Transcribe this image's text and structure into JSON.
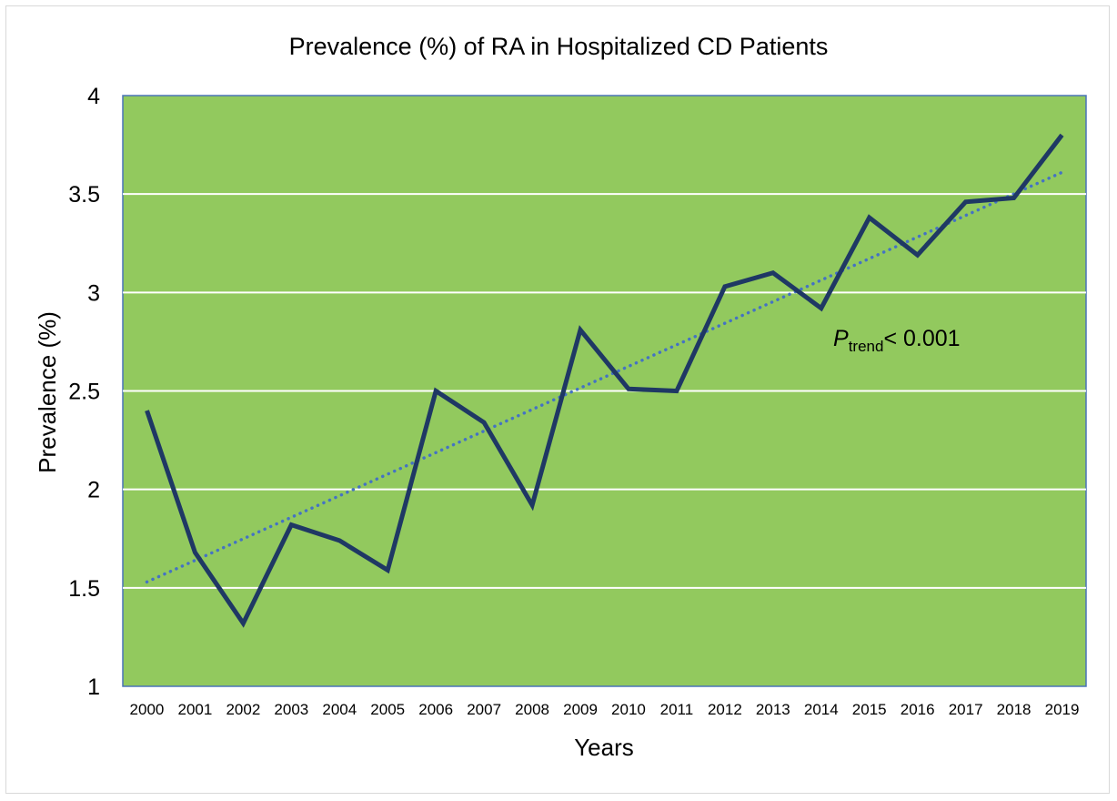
{
  "chart_data": {
    "type": "line",
    "title": "Prevalence (%) of RA in Hospitalized CD Patients",
    "xlabel": "Years",
    "ylabel": "Prevalence (%)",
    "ylim": [
      1,
      4
    ],
    "yticks": [
      "1",
      "1.5",
      "2",
      "2.5",
      "3",
      "3.5",
      "4"
    ],
    "categories": [
      "2000",
      "2001",
      "2002",
      "2003",
      "2004",
      "2005",
      "2006",
      "2007",
      "2008",
      "2009",
      "2010",
      "2011",
      "2012",
      "2013",
      "2014",
      "2015",
      "2016",
      "2017",
      "2018",
      "2019"
    ],
    "series": [
      {
        "values": [
          2.4,
          1.68,
          1.32,
          1.82,
          1.74,
          1.59,
          2.5,
          2.34,
          1.92,
          2.81,
          2.51,
          2.5,
          3.03,
          3.1,
          2.92,
          3.38,
          3.19,
          3.46,
          3.48,
          3.8
        ],
        "color": "#1f3864",
        "style": "solid"
      }
    ],
    "trendline": {
      "type": "linear",
      "style": "dotted",
      "color": "#4472c4",
      "start": 1.53,
      "end": 3.61
    },
    "annotation": {
      "p": "P",
      "sub": "trend",
      "rest": "< 0.001"
    },
    "grid": true,
    "legend": "none",
    "plot_background": "#92c95e",
    "plot_border_color": "#4a73b8",
    "gridline_color": "#ffffff"
  }
}
